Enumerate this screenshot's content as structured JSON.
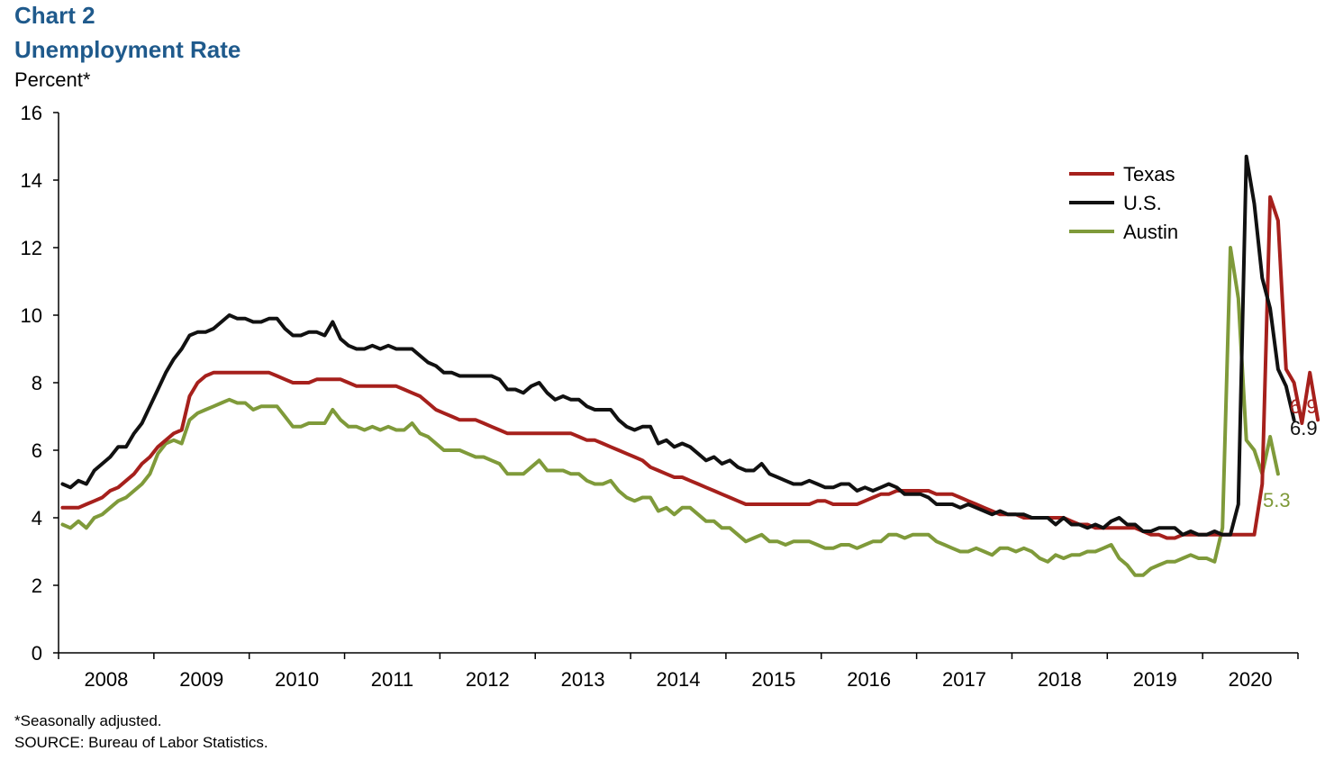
{
  "header": {
    "chart_number": "Chart 2",
    "title": "Unemployment Rate",
    "y_unit": "Percent*"
  },
  "footer": {
    "note": "*Seasonally adjusted.",
    "source": "SOURCE: Bureau of Labor Statistics."
  },
  "chart_data": {
    "type": "line",
    "title": "Unemployment Rate",
    "ylabel": "Percent*",
    "xlabel": "",
    "ylim": [
      0,
      16
    ],
    "yticks": [
      0,
      2,
      4,
      6,
      8,
      10,
      12,
      14,
      16
    ],
    "grid": false,
    "legend_position": "top-right",
    "x_start": "2008-01",
    "x_end": "2020-08",
    "frequency": "monthly",
    "x_axis_years": [
      "2008",
      "2009",
      "2010",
      "2011",
      "2012",
      "2013",
      "2014",
      "2015",
      "2016",
      "2017",
      "2018",
      "2019",
      "2020"
    ],
    "series": [
      {
        "name": "Texas",
        "color": "#a6201c",
        "end_label": "6.9",
        "values": [
          4.3,
          4.3,
          4.3,
          4.4,
          4.5,
          4.6,
          4.8,
          4.9,
          5.1,
          5.3,
          5.6,
          5.8,
          6.1,
          6.3,
          6.5,
          6.6,
          7.6,
          8.0,
          8.2,
          8.3,
          8.3,
          8.3,
          8.3,
          8.3,
          8.3,
          8.3,
          8.3,
          8.2,
          8.1,
          8.0,
          8.0,
          8.0,
          8.1,
          8.1,
          8.1,
          8.1,
          8.0,
          7.9,
          7.9,
          7.9,
          7.9,
          7.9,
          7.9,
          7.8,
          7.7,
          7.6,
          7.4,
          7.2,
          7.1,
          7.0,
          6.9,
          6.9,
          6.9,
          6.8,
          6.7,
          6.6,
          6.5,
          6.5,
          6.5,
          6.5,
          6.5,
          6.5,
          6.5,
          6.5,
          6.5,
          6.4,
          6.3,
          6.3,
          6.2,
          6.1,
          6.0,
          5.9,
          5.8,
          5.7,
          5.5,
          5.4,
          5.3,
          5.2,
          5.2,
          5.1,
          5.0,
          4.9,
          4.8,
          4.7,
          4.6,
          4.5,
          4.4,
          4.4,
          4.4,
          4.4,
          4.4,
          4.4,
          4.4,
          4.4,
          4.4,
          4.5,
          4.5,
          4.4,
          4.4,
          4.4,
          4.4,
          4.5,
          4.6,
          4.7,
          4.7,
          4.8,
          4.8,
          4.8,
          4.8,
          4.8,
          4.7,
          4.7,
          4.7,
          4.6,
          4.5,
          4.4,
          4.3,
          4.2,
          4.1,
          4.1,
          4.1,
          4.0,
          4.0,
          4.0,
          4.0,
          4.0,
          4.0,
          3.9,
          3.8,
          3.8,
          3.7,
          3.7,
          3.7,
          3.7,
          3.7,
          3.7,
          3.6,
          3.5,
          3.5,
          3.4,
          3.4,
          3.5,
          3.5,
          3.5,
          3.5,
          3.5,
          3.5,
          3.5,
          3.5,
          3.5,
          3.5,
          5.0,
          13.5,
          12.8,
          8.4,
          8.0,
          6.8,
          8.3,
          6.9
        ]
      },
      {
        "name": "U.S.",
        "color": "#111111",
        "end_label": "6.9",
        "values": [
          5.0,
          4.9,
          5.1,
          5.0,
          5.4,
          5.6,
          5.8,
          6.1,
          6.1,
          6.5,
          6.8,
          7.3,
          7.8,
          8.3,
          8.7,
          9.0,
          9.4,
          9.5,
          9.5,
          9.6,
          9.8,
          10.0,
          9.9,
          9.9,
          9.8,
          9.8,
          9.9,
          9.9,
          9.6,
          9.4,
          9.4,
          9.5,
          9.5,
          9.4,
          9.8,
          9.3,
          9.1,
          9.0,
          9.0,
          9.1,
          9.0,
          9.1,
          9.0,
          9.0,
          9.0,
          8.8,
          8.6,
          8.5,
          8.3,
          8.3,
          8.2,
          8.2,
          8.2,
          8.2,
          8.2,
          8.1,
          7.8,
          7.8,
          7.7,
          7.9,
          8.0,
          7.7,
          7.5,
          7.6,
          7.5,
          7.5,
          7.3,
          7.2,
          7.2,
          7.2,
          6.9,
          6.7,
          6.6,
          6.7,
          6.7,
          6.2,
          6.3,
          6.1,
          6.2,
          6.1,
          5.9,
          5.7,
          5.8,
          5.6,
          5.7,
          5.5,
          5.4,
          5.4,
          5.6,
          5.3,
          5.2,
          5.1,
          5.0,
          5.0,
          5.1,
          5.0,
          4.9,
          4.9,
          5.0,
          5.0,
          4.8,
          4.9,
          4.8,
          4.9,
          5.0,
          4.9,
          4.7,
          4.7,
          4.7,
          4.6,
          4.4,
          4.4,
          4.4,
          4.3,
          4.4,
          4.3,
          4.2,
          4.1,
          4.2,
          4.1,
          4.1,
          4.1,
          4.0,
          4.0,
          4.0,
          3.8,
          4.0,
          3.8,
          3.8,
          3.7,
          3.8,
          3.7,
          3.9,
          4.0,
          3.8,
          3.8,
          3.6,
          3.6,
          3.7,
          3.7,
          3.7,
          3.5,
          3.6,
          3.5,
          3.5,
          3.6,
          3.5,
          3.5,
          4.4,
          14.7,
          13.3,
          11.1,
          10.2,
          8.4,
          7.9,
          6.9
        ]
      },
      {
        "name": "Austin",
        "color": "#7f9a3a",
        "end_label": "5.3",
        "values": [
          3.8,
          3.7,
          3.9,
          3.7,
          4.0,
          4.1,
          4.3,
          4.5,
          4.6,
          4.8,
          5.0,
          5.3,
          5.9,
          6.2,
          6.3,
          6.2,
          6.9,
          7.1,
          7.2,
          7.3,
          7.4,
          7.5,
          7.4,
          7.4,
          7.2,
          7.3,
          7.3,
          7.3,
          7.0,
          6.7,
          6.7,
          6.8,
          6.8,
          6.8,
          7.2,
          6.9,
          6.7,
          6.7,
          6.6,
          6.7,
          6.6,
          6.7,
          6.6,
          6.6,
          6.8,
          6.5,
          6.4,
          6.2,
          6.0,
          6.0,
          6.0,
          5.9,
          5.8,
          5.8,
          5.7,
          5.6,
          5.3,
          5.3,
          5.3,
          5.5,
          5.7,
          5.4,
          5.4,
          5.4,
          5.3,
          5.3,
          5.1,
          5.0,
          5.0,
          5.1,
          4.8,
          4.6,
          4.5,
          4.6,
          4.6,
          4.2,
          4.3,
          4.1,
          4.3,
          4.3,
          4.1,
          3.9,
          3.9,
          3.7,
          3.7,
          3.5,
          3.3,
          3.4,
          3.5,
          3.3,
          3.3,
          3.2,
          3.3,
          3.3,
          3.3,
          3.2,
          3.1,
          3.1,
          3.2,
          3.2,
          3.1,
          3.2,
          3.3,
          3.3,
          3.5,
          3.5,
          3.4,
          3.5,
          3.5,
          3.5,
          3.3,
          3.2,
          3.1,
          3.0,
          3.0,
          3.1,
          3.0,
          2.9,
          3.1,
          3.1,
          3.0,
          3.1,
          3.0,
          2.8,
          2.7,
          2.9,
          2.8,
          2.9,
          2.9,
          3.0,
          3.0,
          3.1,
          3.2,
          2.8,
          2.6,
          2.3,
          2.3,
          2.5,
          2.6,
          2.7,
          2.7,
          2.8,
          2.9,
          2.8,
          2.8,
          2.7,
          3.7,
          12.0,
          10.5,
          6.3,
          6.0,
          5.3,
          6.4,
          5.3
        ]
      }
    ]
  }
}
